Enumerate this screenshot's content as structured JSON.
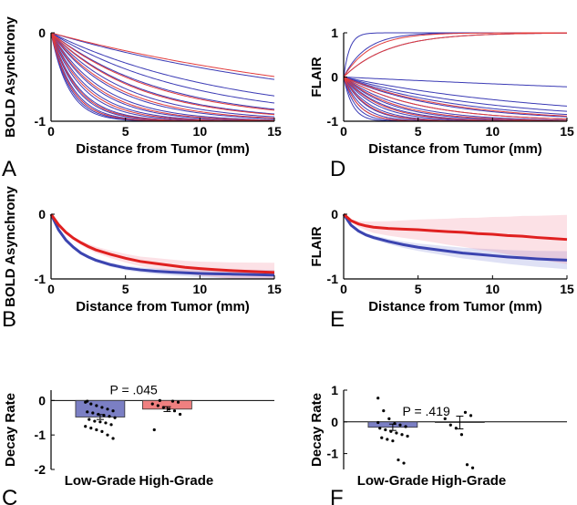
{
  "chart_data": [
    {
      "panel": "A",
      "type": "line",
      "xlabel": "Distance from Tumor (mm)",
      "ylabel": "BOLD Asynchrony",
      "xlim": [
        0,
        15
      ],
      "ylim": [
        -1,
        0
      ],
      "xticks": [
        "0",
        "5",
        "10",
        "15"
      ],
      "yticks": [
        "-1",
        "0"
      ],
      "curve": "y = -(1 - exp(-x / tau))",
      "series": [
        {
          "color": "#3b3bb5",
          "values": [
            1.2,
            1.3,
            1.4,
            1.5,
            1.7,
            1.9,
            2.2,
            2.6,
            3.0,
            3.5,
            4.2,
            5.0,
            6.0,
            7.5,
            9.5,
            12,
            20
          ]
        },
        {
          "color": "#e23b3b",
          "values": [
            1.4,
            1.8,
            2.4,
            3.2,
            4.5,
            5.8,
            7.2,
            22
          ]
        }
      ]
    },
    {
      "panel": "D",
      "type": "line",
      "xlabel": "Distance from Tumor (mm)",
      "ylabel": "FLAIR",
      "xlim": [
        0,
        15
      ],
      "ylim": [
        -1,
        1
      ],
      "xticks": [
        "0",
        "5",
        "10",
        "15"
      ],
      "yticks": [
        "-1",
        "0",
        "1"
      ],
      "curve": "y = s * (1 - exp(-x / tau))",
      "series": [
        {
          "color": "#3b3bb5",
          "up": [
            0.4,
            1.5,
            3.0
          ],
          "down": [
            0.6,
            0.8,
            1.0,
            1.2,
            1.5,
            1.8,
            2.2,
            2.7,
            3.2,
            4.0,
            5.0,
            6.5,
            8.0,
            10,
            14,
            60
          ]
        },
        {
          "color": "#e23b3b",
          "up": [
            1.8,
            3.0
          ],
          "down": [
            1.0,
            1.6,
            2.5,
            3.5,
            5.0,
            7.0
          ]
        }
      ]
    },
    {
      "panel": "B",
      "type": "line",
      "xlabel": "Distance from Tumor (mm)",
      "ylabel": "BOLD Asynchrony",
      "xlim": [
        0,
        15
      ],
      "ylim": [
        -1,
        0
      ],
      "xticks": [
        "0",
        "5",
        "10",
        "15"
      ],
      "yticks": [
        "-1",
        "0"
      ],
      "series": [
        {
          "color": "#3b44b0",
          "x": [
            0,
            0.5,
            1,
            1.5,
            2,
            2.5,
            3,
            4,
            5,
            6,
            7,
            8,
            9,
            10,
            11,
            12,
            13,
            14,
            15
          ],
          "y": [
            0,
            -0.24,
            -0.4,
            -0.51,
            -0.6,
            -0.66,
            -0.71,
            -0.78,
            -0.83,
            -0.86,
            -0.88,
            -0.895,
            -0.905,
            -0.915,
            -0.92,
            -0.925,
            -0.93,
            -0.935,
            -0.94
          ],
          "band": [
            0.04,
            0.04
          ]
        },
        {
          "color": "#e02020",
          "x": [
            0,
            0.5,
            1,
            1.5,
            2,
            2.5,
            3,
            4,
            5,
            6,
            7,
            8,
            9,
            10,
            11,
            12,
            13,
            14,
            15
          ],
          "y": [
            0,
            -0.16,
            -0.28,
            -0.37,
            -0.44,
            -0.5,
            -0.55,
            -0.62,
            -0.68,
            -0.73,
            -0.76,
            -0.79,
            -0.82,
            -0.84,
            -0.855,
            -0.87,
            -0.88,
            -0.89,
            -0.9
          ],
          "band": [
            0.1,
            0.05
          ]
        }
      ]
    },
    {
      "panel": "E",
      "type": "line",
      "xlabel": "Distance from Tumor (mm)",
      "ylabel": "FLAIR",
      "xlim": [
        0,
        15
      ],
      "ylim": [
        -1,
        0
      ],
      "xticks": [
        "0",
        "5",
        "10",
        "15"
      ],
      "yticks": [
        "-1",
        "0"
      ],
      "series": [
        {
          "color": "#3b44b0",
          "x": [
            0,
            0.5,
            1,
            1.5,
            2,
            3,
            4,
            5,
            6,
            7,
            8,
            9,
            10,
            11,
            12,
            13,
            14,
            15
          ],
          "y": [
            0,
            -0.17,
            -0.26,
            -0.32,
            -0.36,
            -0.42,
            -0.47,
            -0.51,
            -0.54,
            -0.57,
            -0.6,
            -0.62,
            -0.64,
            -0.66,
            -0.675,
            -0.69,
            -0.7,
            -0.71
          ],
          "band": [
            0.05,
            0.09
          ]
        },
        {
          "color": "#e02020",
          "x": [
            0,
            0.5,
            1,
            1.5,
            2,
            3,
            4,
            5,
            6,
            7,
            8,
            9,
            10,
            11,
            12,
            13,
            14,
            15
          ],
          "y": [
            0,
            -0.1,
            -0.15,
            -0.18,
            -0.2,
            -0.22,
            -0.23,
            -0.24,
            -0.255,
            -0.27,
            -0.28,
            -0.3,
            -0.31,
            -0.33,
            -0.34,
            -0.36,
            -0.375,
            -0.39
          ],
          "band": [
            0.2,
            0.18
          ]
        }
      ]
    },
    {
      "panel": "C",
      "type": "bar",
      "ylabel": "Decay Rate",
      "categories": [
        "Low-Grade",
        "High-Grade"
      ],
      "ylim": [
        -2,
        0.3
      ],
      "yticks": [
        "-2",
        "-1",
        "0"
      ],
      "annotation": "P = .045",
      "series": [
        {
          "name": "Low-Grade",
          "color": "#7b7fc4",
          "value": -0.48,
          "err": 0.07,
          "points": [
            -0.05,
            -0.1,
            -0.15,
            -0.2,
            -0.25,
            -0.3,
            -0.33,
            -0.36,
            -0.4,
            -0.43,
            -0.46,
            -0.5,
            -0.55,
            -0.6,
            -0.62,
            -0.65,
            -0.7,
            -0.75,
            -0.8,
            -0.85,
            -0.9,
            -1.0,
            -1.1,
            -0.02
          ]
        },
        {
          "name": "High-Grade",
          "color": "#f08080",
          "value": -0.25,
          "err": 0.07,
          "points": [
            -0.02,
            -0.05,
            -0.1,
            -0.15,
            -0.2,
            -0.25,
            -0.3,
            -0.4,
            -0.85,
            0.0
          ]
        }
      ]
    },
    {
      "panel": "F",
      "type": "bar",
      "ylabel": "Decay Rate",
      "categories": [
        "Low-Grade",
        "High-Grade"
      ],
      "ylim": [
        -1.5,
        1
      ],
      "yticks": [
        "-1",
        "0",
        "1"
      ],
      "annotation": "P = .419",
      "series": [
        {
          "name": "Low-Grade",
          "color": "#7b7fc4",
          "value": -0.17,
          "err": 0.1,
          "points": [
            0.75,
            0.35,
            0.1,
            -0.05,
            -0.1,
            -0.15,
            -0.2,
            -0.25,
            -0.3,
            -0.35,
            -0.4,
            -0.45,
            -0.5,
            -0.55,
            -0.6,
            -1.2,
            -1.3,
            -0.02
          ]
        },
        {
          "name": "High-Grade",
          "color": "#f08080",
          "value": -0.02,
          "err": 0.2,
          "points": [
            0.3,
            0.2,
            0.1,
            -0.1,
            -0.2,
            -0.4,
            -1.35,
            -1.45
          ]
        }
      ]
    }
  ]
}
